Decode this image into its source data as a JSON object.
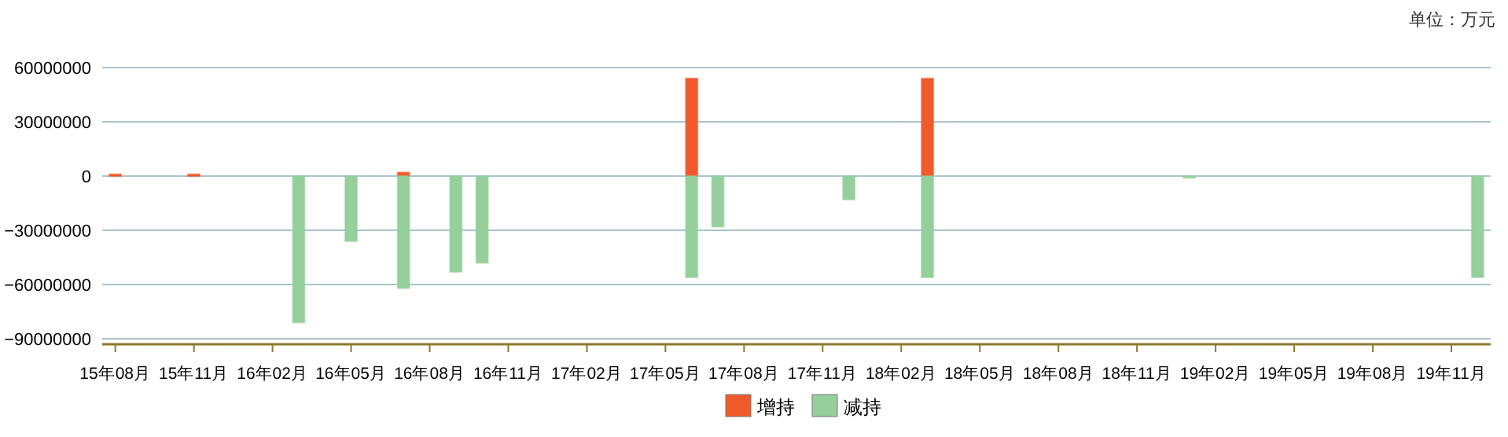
{
  "chart_data": {
    "type": "bar",
    "stacked": true,
    "categories": [
      "15年08月",
      null,
      null,
      "15年11月",
      null,
      null,
      "16年02月",
      null,
      null,
      "16年05月",
      null,
      null,
      "16年08月",
      null,
      null,
      "16年11月",
      null,
      null,
      "17年02月",
      null,
      null,
      "17年05月",
      null,
      null,
      "17年08月",
      null,
      null,
      "17年11月",
      null,
      null,
      "18年02月",
      null,
      null,
      "18年05月",
      null,
      null,
      "18年08月",
      null,
      null,
      "18年11月",
      null,
      null,
      "19年02月",
      null,
      null,
      "19年05月",
      null,
      null,
      "19年08月",
      null,
      null,
      "19年11月",
      null
    ],
    "series": [
      {
        "name": "增持",
        "color": "#f05a2a",
        "values": [
          1000000,
          null,
          null,
          1000000,
          null,
          null,
          null,
          null,
          null,
          null,
          null,
          2000000,
          null,
          null,
          null,
          null,
          null,
          null,
          null,
          null,
          null,
          null,
          54000000,
          null,
          null,
          null,
          null,
          null,
          null,
          null,
          null,
          54000000,
          null,
          null,
          null,
          null,
          null,
          null,
          null,
          null,
          null,
          null,
          null,
          null,
          null,
          null,
          null,
          null,
          null,
          null,
          null,
          null,
          null
        ]
      },
      {
        "name": "减持",
        "color": "#94cf9c",
        "values": [
          null,
          null,
          null,
          null,
          null,
          null,
          null,
          -81000000,
          null,
          -36000000,
          null,
          -62000000,
          null,
          -53000000,
          -48000000,
          null,
          null,
          null,
          null,
          null,
          null,
          null,
          -56000000,
          -28000000,
          null,
          null,
          null,
          null,
          -13000000,
          null,
          null,
          -56000000,
          null,
          null,
          null,
          null,
          null,
          null,
          null,
          null,
          null,
          -1000000,
          null,
          null,
          null,
          null,
          null,
          null,
          null,
          null,
          null,
          null,
          -56000000
        ]
      }
    ],
    "ylim": [
      -93000000,
      60000000
    ],
    "yticks": [
      -90000000,
      -60000000,
      -30000000,
      0,
      30000000,
      60000000
    ],
    "grid": "y",
    "legend": "bottom",
    "annotations": [
      "单位：万元"
    ]
  }
}
